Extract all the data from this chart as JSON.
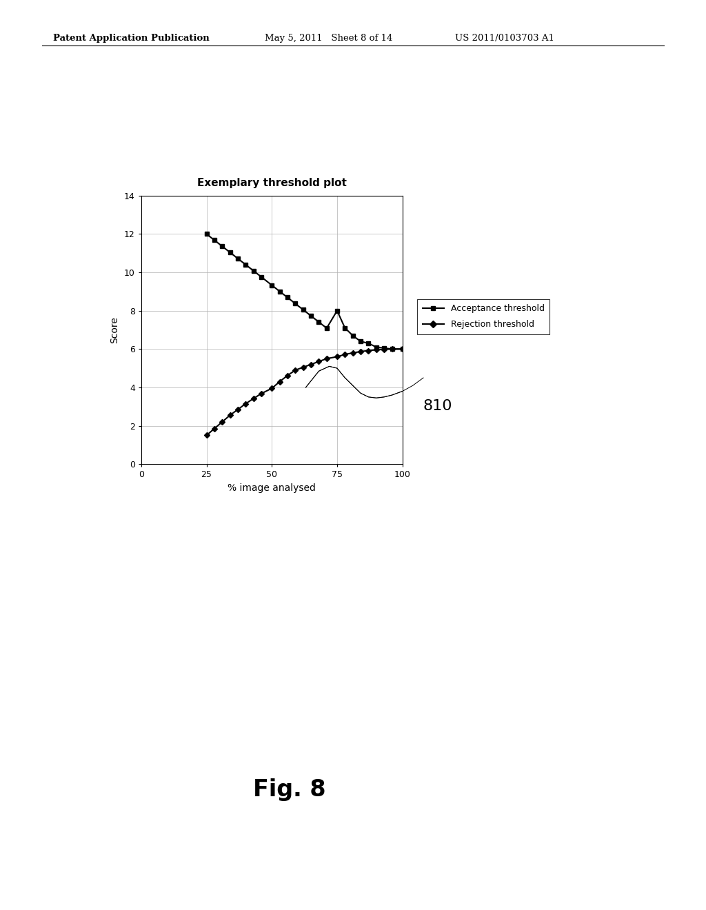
{
  "title": "Exemplary threshold plot",
  "xlabel": "% image analysed",
  "ylabel": "Score",
  "xlim": [
    0,
    100
  ],
  "ylim": [
    0,
    14
  ],
  "xticks": [
    0,
    25,
    50,
    75,
    100
  ],
  "yticks": [
    0,
    2,
    4,
    6,
    8,
    10,
    12,
    14
  ],
  "acceptance_x": [
    25,
    28,
    31,
    34,
    37,
    40,
    43,
    46,
    50,
    53,
    56,
    59,
    62,
    65,
    68,
    71,
    75,
    78,
    81,
    84,
    87,
    90,
    93,
    96,
    100
  ],
  "acceptance_y": [
    12.0,
    11.68,
    11.36,
    11.04,
    10.72,
    10.4,
    10.08,
    9.76,
    9.33,
    9.01,
    8.69,
    8.37,
    8.05,
    7.73,
    7.41,
    7.09,
    8.0,
    7.1,
    6.7,
    6.4,
    6.3,
    6.1,
    6.05,
    6.0,
    6.0
  ],
  "rejection_x": [
    25,
    28,
    31,
    34,
    37,
    40,
    43,
    46,
    50,
    53,
    56,
    59,
    62,
    65,
    68,
    71,
    75,
    78,
    81,
    84,
    87,
    90,
    93,
    96,
    100
  ],
  "rejection_y": [
    1.5,
    1.85,
    2.2,
    2.55,
    2.85,
    3.15,
    3.42,
    3.68,
    3.95,
    4.3,
    4.62,
    4.9,
    5.05,
    5.2,
    5.35,
    5.5,
    5.6,
    5.72,
    5.8,
    5.87,
    5.92,
    5.96,
    5.98,
    6.0,
    6.0
  ],
  "curve810_x": [
    63,
    68,
    72,
    75,
    78,
    81,
    84,
    87,
    90,
    93,
    96,
    100,
    104,
    108
  ],
  "curve810_y": [
    4.0,
    4.85,
    5.1,
    5.0,
    4.5,
    4.1,
    3.7,
    3.5,
    3.45,
    3.5,
    3.6,
    3.8,
    4.1,
    4.5
  ],
  "annotation_label": "810",
  "header_left": "Patent Application Publication",
  "header_mid": "May 5, 2011   Sheet 8 of 14",
  "header_right": "US 2011/0103703 A1",
  "fig_label": "Fig. 8",
  "bg_color": "#ffffff",
  "grid_color": "#b0b0b0"
}
